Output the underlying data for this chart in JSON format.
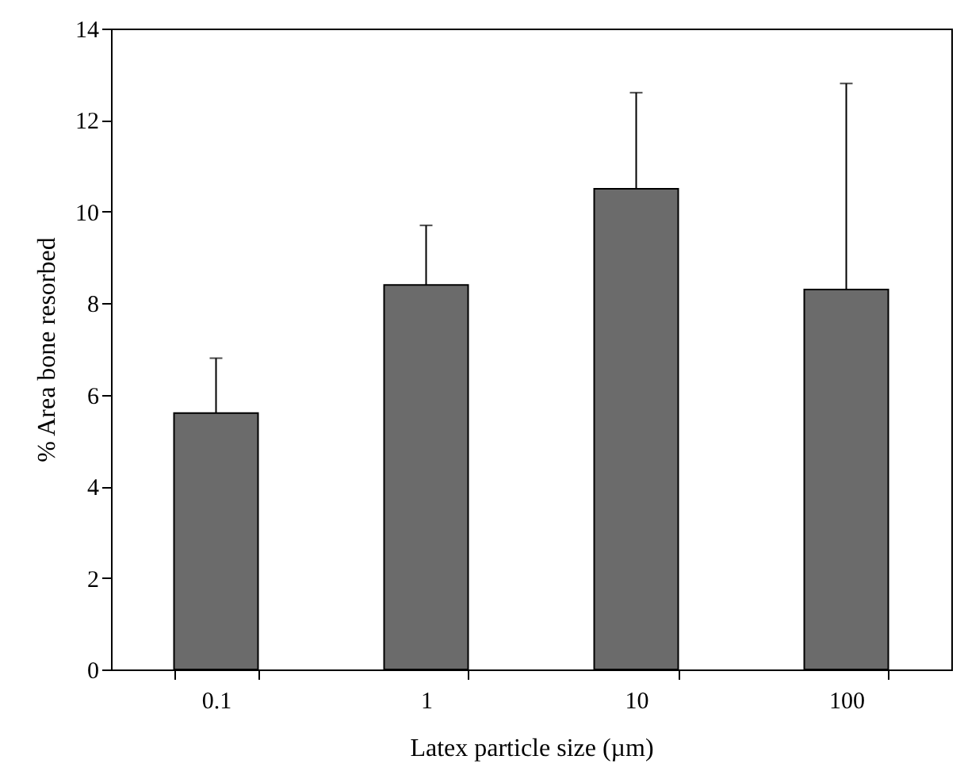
{
  "chart_data": {
    "type": "bar",
    "xlabel": "Latex particle size (µm)",
    "ylabel": "% Area bone resorbed",
    "categories": [
      "0.1",
      "1",
      "10",
      "100"
    ],
    "values": [
      5.6,
      8.4,
      10.5,
      8.3
    ],
    "errors": [
      [
        5.6,
        6.8
      ],
      [
        8.4,
        9.7
      ],
      [
        10.5,
        12.6
      ],
      [
        8.3,
        12.8
      ]
    ],
    "color": "#6b6b6b",
    "ylim": [
      0,
      14
    ],
    "yticks": [
      0,
      2,
      4,
      6,
      8,
      10,
      12,
      14
    ],
    "grid": false
  }
}
